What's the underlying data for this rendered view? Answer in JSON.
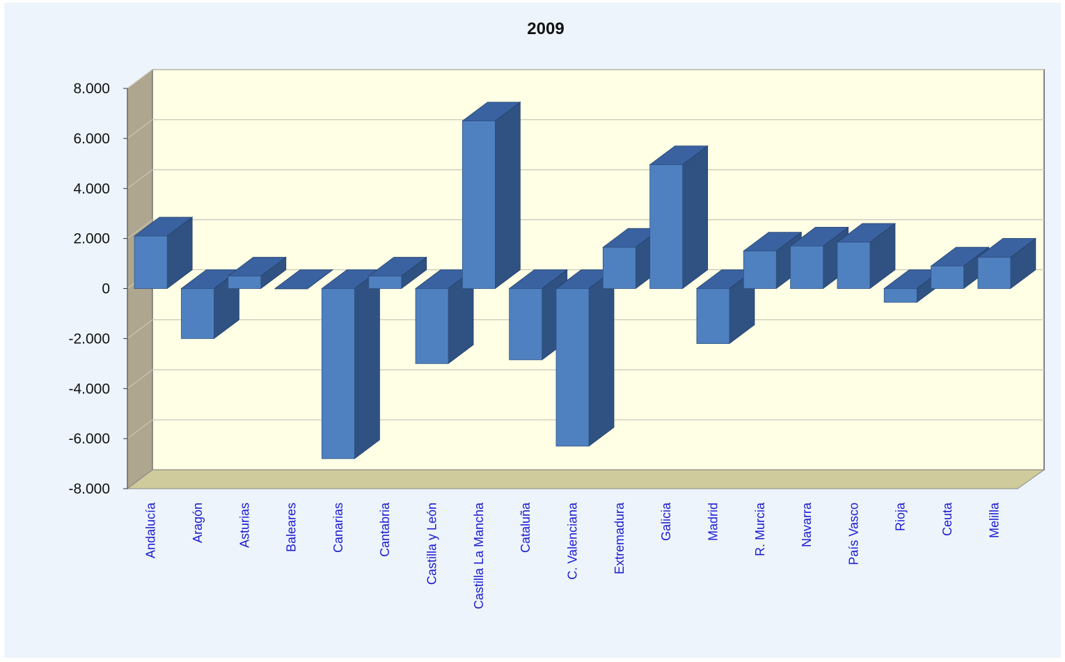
{
  "chart_data": {
    "type": "bar",
    "title": "2009",
    "xlabel": "",
    "ylabel": "",
    "ylim": [
      -8000,
      8000
    ],
    "yticks": [
      8000,
      6000,
      4000,
      2000,
      0,
      -2000,
      -4000,
      -6000,
      -8000
    ],
    "ytick_labels": [
      "8.000",
      "6.000",
      "4.000",
      "2.000",
      "0",
      "-2.000",
      "-4.000",
      "-6.000",
      "-8.000"
    ],
    "grid": true,
    "legend": "none",
    "categories": [
      "Andalucía",
      "Aragón",
      "Asturias",
      "Baleares",
      "Canarias",
      "Cantabria",
      "Castilla y León",
      "Castilla La Mancha",
      "Cataluña",
      "C. Valenciana",
      "Extremadura",
      "Galicia",
      "Madrid",
      "R. Murcia",
      "Navarra",
      "País Vasco",
      "Rioja",
      "Ceuta",
      "Melilla"
    ],
    "values": [
      2100,
      -2000,
      500,
      0,
      -6800,
      500,
      -3000,
      6700,
      -2850,
      -6300,
      1650,
      4950,
      -2200,
      1500,
      1700,
      1850,
      -550,
      900,
      1250
    ],
    "colors": {
      "bar_front": "#4f81c0",
      "bar_side": "#2f5282",
      "bar_top": "#3a62a0",
      "plot_bg": "#ffffe6",
      "side_wall": "#aea68f",
      "floor": "#cfcb9c",
      "tick_label": "#1a1ad0"
    }
  }
}
